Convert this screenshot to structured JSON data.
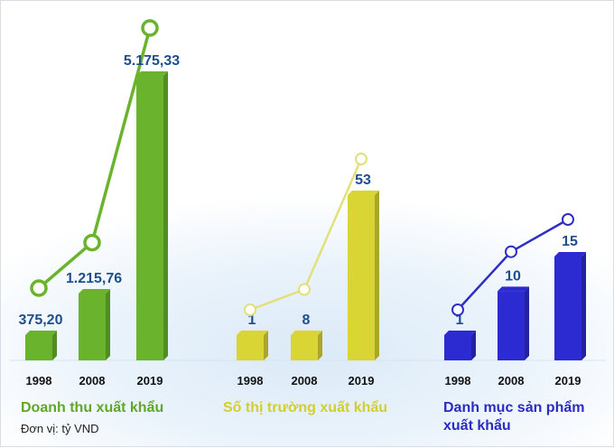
{
  "chart_data": [
    {
      "type": "bar",
      "title": "Doanh thu xuất khẩu",
      "unit_note": "Đơn vị: tỷ VND",
      "categories": [
        "1998",
        "2008",
        "2019"
      ],
      "values": [
        375.2,
        1215.76,
        5175.33
      ],
      "value_labels": [
        "375,20",
        "1.215,76",
        "5.175,33"
      ],
      "overlay_line": true,
      "color": "#6ab42d",
      "line_color": "#6ab42d",
      "title_color": "#5fa826"
    },
    {
      "type": "bar",
      "title": "Số thị trường xuất khẩu",
      "categories": [
        "1998",
        "2008",
        "2019"
      ],
      "values": [
        1,
        8,
        53
      ],
      "value_labels": [
        "1",
        "8",
        "53"
      ],
      "overlay_line": true,
      "color": "#d9d535",
      "line_color": "#e3e07a",
      "title_color": "#d2cf2c"
    },
    {
      "type": "bar",
      "title": "Danh mục sản phẩm xuất khẩu",
      "categories": [
        "1998",
        "2008",
        "2019"
      ],
      "values": [
        1,
        10,
        15
      ],
      "value_labels": [
        "1",
        "10",
        "15"
      ],
      "overlay_line": true,
      "color": "#2b2bd1",
      "line_color": "#2d2dc8",
      "title_color": "#2a2ac4"
    }
  ]
}
